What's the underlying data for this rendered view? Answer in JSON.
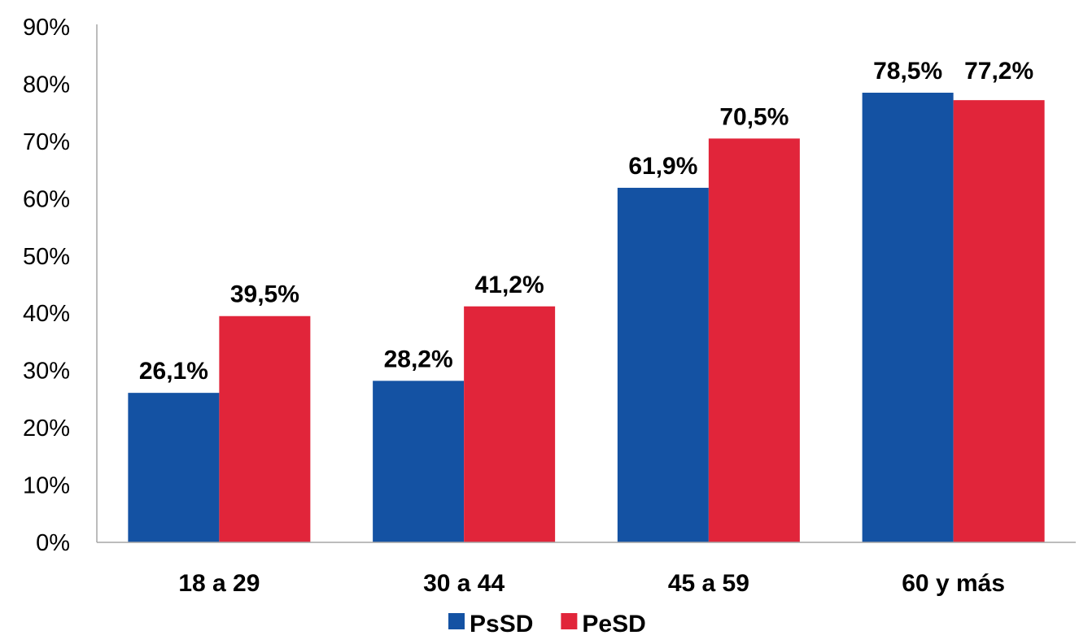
{
  "chart_data": {
    "type": "bar",
    "categories": [
      "18 a 29",
      "30 a 44",
      "45 a 59",
      "60 y más"
    ],
    "series": [
      {
        "name": "PsSD",
        "color": "#1452A3",
        "values": [
          26.1,
          28.2,
          61.9,
          78.5
        ],
        "labels": [
          "26,1%",
          "28,2%",
          "61,9%",
          "78,5%"
        ]
      },
      {
        "name": "PeSD",
        "color": "#E1253A",
        "values": [
          39.5,
          41.2,
          70.5,
          77.2
        ],
        "labels": [
          "39,5%",
          "41,2%",
          "70,5%",
          "77,2%"
        ]
      }
    ],
    "ylim": [
      0,
      90
    ],
    "yticks": [
      0,
      10,
      20,
      30,
      40,
      50,
      60,
      70,
      80,
      90
    ],
    "ytick_labels": [
      "0%",
      "10%",
      "20%",
      "30%",
      "40%",
      "50%",
      "60%",
      "70%",
      "80%",
      "90%"
    ],
    "legend": "bottom",
    "grid": false
  }
}
